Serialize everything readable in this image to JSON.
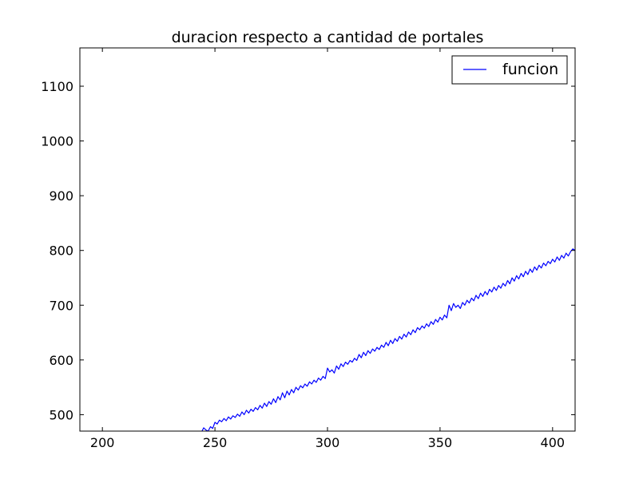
{
  "chart_data": {
    "type": "line",
    "title": "duracion respecto a cantidad de portales",
    "xlabel": "",
    "ylabel": "",
    "xlim": [
      190,
      410
    ],
    "ylim": [
      470,
      1170
    ],
    "xticks": [
      200,
      250,
      300,
      350,
      400
    ],
    "yticks": [
      500,
      600,
      700,
      800,
      900,
      1000,
      1100
    ],
    "legend_position": "top-right",
    "grid": false,
    "series": [
      {
        "name": "funcion",
        "color": "#0000ff",
        "x": [
          243,
          244,
          245,
          246,
          247,
          248,
          249,
          250,
          251,
          252,
          253,
          254,
          255,
          256,
          257,
          258,
          259,
          260,
          261,
          262,
          263,
          264,
          265,
          266,
          267,
          268,
          269,
          270,
          271,
          272,
          273,
          274,
          275,
          276,
          277,
          278,
          279,
          280,
          281,
          282,
          283,
          284,
          285,
          286,
          287,
          288,
          289,
          290,
          291,
          292,
          293,
          294,
          295,
          296,
          297,
          298,
          299,
          300,
          301,
          302,
          303,
          304,
          305,
          306,
          307,
          308,
          309,
          310,
          311,
          312,
          313,
          314,
          315,
          316,
          317,
          318,
          319,
          320,
          321,
          322,
          323,
          324,
          325,
          326,
          327,
          328,
          329,
          330,
          331,
          332,
          333,
          334,
          335,
          336,
          337,
          338,
          339,
          340,
          341,
          342,
          343,
          344,
          345,
          346,
          347,
          348,
          349,
          350,
          351,
          352,
          353,
          354,
          355,
          356,
          357,
          358,
          359,
          360,
          361,
          362,
          363,
          364,
          365,
          366,
          367,
          368,
          369,
          370,
          371,
          372,
          373,
          374,
          375,
          376,
          377,
          378,
          379,
          380,
          381,
          382,
          383,
          384,
          385,
          386,
          387,
          388,
          389,
          390,
          391,
          392,
          393,
          394,
          395,
          396,
          397,
          398,
          399,
          400,
          401,
          402,
          403,
          404,
          405,
          406,
          407,
          408,
          409,
          410
        ],
        "y": [
          470,
          468,
          476,
          472,
          470,
          478,
          475,
          486,
          483,
          490,
          487,
          493,
          489,
          496,
          492,
          498,
          495,
          501,
          497,
          505,
          500,
          508,
          503,
          510,
          506,
          513,
          509,
          517,
          512,
          521,
          515,
          524,
          519,
          529,
          522,
          533,
          527,
          540,
          531,
          543,
          536,
          546,
          540,
          550,
          545,
          553,
          549,
          556,
          552,
          560,
          556,
          563,
          559,
          567,
          563,
          570,
          566,
          585,
          578,
          582,
          576,
          589,
          583,
          593,
          588,
          596,
          592,
          599,
          596,
          603,
          599,
          610,
          604,
          614,
          608,
          617,
          612,
          620,
          616,
          623,
          619,
          627,
          623,
          632,
          626,
          636,
          630,
          639,
          634,
          643,
          638,
          647,
          642,
          651,
          646,
          655,
          650,
          659,
          655,
          662,
          658,
          666,
          661,
          670,
          665,
          674,
          669,
          678,
          673,
          682,
          677,
          700,
          690,
          703,
          696,
          700,
          694,
          705,
          700,
          709,
          704,
          713,
          708,
          718,
          712,
          722,
          716,
          725,
          719,
          729,
          724,
          733,
          727,
          736,
          731,
          740,
          735,
          745,
          739,
          750,
          744,
          754,
          748,
          758,
          752,
          762,
          756,
          766,
          760,
          770,
          764,
          773,
          768,
          777,
          772,
          780,
          776,
          784,
          779,
          788,
          782,
          791,
          786,
          795,
          790,
          798,
          803,
          800
        ]
      }
    ]
  }
}
